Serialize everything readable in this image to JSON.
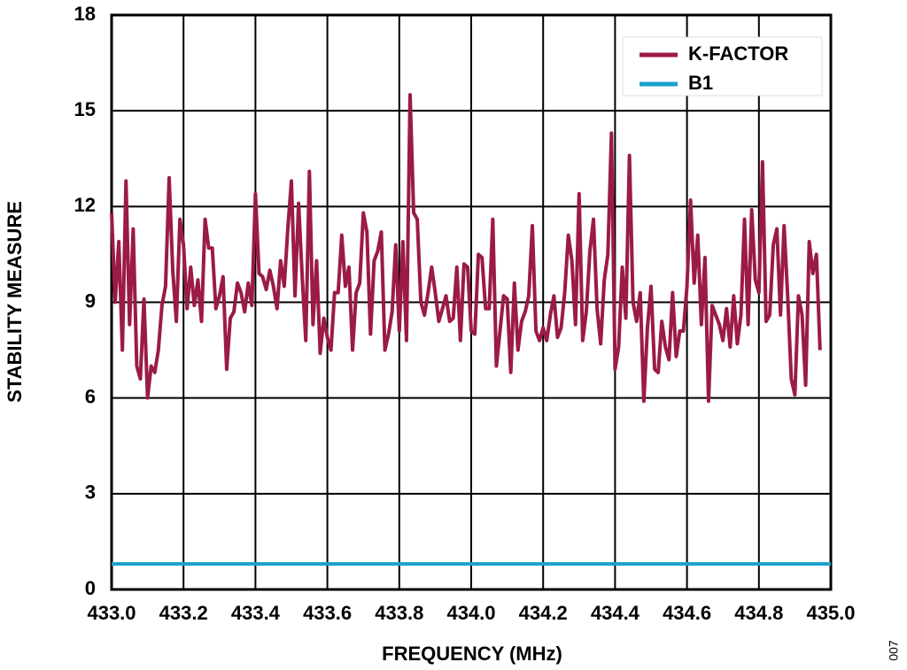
{
  "chart_data": {
    "type": "line",
    "ylabel": "STABILITY MEASURE",
    "xlabel": "FREQUENCY (MHz)",
    "figure_id": "007",
    "xlim": [
      433,
      435
    ],
    "ylim": [
      0,
      18
    ],
    "xticks": [
      {
        "value": 433,
        "label": "433.0"
      },
      433.2,
      433.4,
      433.6,
      433.8,
      {
        "value": 434,
        "label": "434.0"
      },
      434.2,
      434.4,
      434.6,
      434.8,
      {
        "value": 435,
        "label": "435.0"
      }
    ],
    "yticks": [
      0,
      3,
      6,
      9,
      12,
      15,
      18
    ],
    "grid": true,
    "legend": "upper right",
    "series": [
      {
        "name": "K-FACTOR",
        "color": "#9b1b45",
        "x": [
          433.0,
          433.01,
          433.02,
          433.03,
          433.04,
          433.05,
          433.06,
          433.07,
          433.08,
          433.09,
          433.1,
          433.11,
          433.12,
          433.13,
          433.14,
          433.15,
          433.16,
          433.17,
          433.18,
          433.19,
          433.2,
          433.21,
          433.22,
          433.23,
          433.24,
          433.25,
          433.26,
          433.27,
          433.28,
          433.29,
          433.3,
          433.31,
          433.32,
          433.33,
          433.34,
          433.35,
          433.36,
          433.37,
          433.38,
          433.39,
          433.4,
          433.41,
          433.42,
          433.43,
          433.44,
          433.45,
          433.46,
          433.47,
          433.48,
          433.49,
          433.5,
          433.51,
          433.52,
          433.53,
          433.54,
          433.55,
          433.56,
          433.57,
          433.58,
          433.59,
          433.6,
          433.61,
          433.62,
          433.63,
          433.64,
          433.65,
          433.66,
          433.67,
          433.68,
          433.69,
          433.7,
          433.71,
          433.72,
          433.73,
          433.74,
          433.75,
          433.76,
          433.77,
          433.78,
          433.79,
          433.8,
          433.81,
          433.82,
          433.83,
          433.84,
          433.85,
          433.86,
          433.87,
          433.88,
          433.89,
          433.9,
          433.91,
          433.92,
          433.93,
          433.94,
          433.95,
          433.96,
          433.97,
          433.98,
          433.99,
          434.0,
          434.01,
          434.02,
          434.03,
          434.04,
          434.05,
          434.06,
          434.07,
          434.08,
          434.09,
          434.1,
          434.11,
          434.12,
          434.13,
          434.14,
          434.15,
          434.16,
          434.17,
          434.18,
          434.19,
          434.2,
          434.21,
          434.22,
          434.23,
          434.24,
          434.25,
          434.26,
          434.27,
          434.28,
          434.29,
          434.3,
          434.31,
          434.32,
          434.33,
          434.34,
          434.35,
          434.36,
          434.37,
          434.38,
          434.39,
          434.4,
          434.41,
          434.42,
          434.43,
          434.44,
          434.45,
          434.46,
          434.47,
          434.48,
          434.49,
          434.5,
          434.51,
          434.52,
          434.53,
          434.54,
          434.55,
          434.56,
          434.57,
          434.58,
          434.59,
          434.6,
          434.61,
          434.62,
          434.63,
          434.64,
          434.65,
          434.66,
          434.67,
          434.68,
          434.69,
          434.7,
          434.71,
          434.72,
          434.73,
          434.74,
          434.75,
          434.76,
          434.77,
          434.78,
          434.79,
          434.8,
          434.81,
          434.82,
          434.83,
          434.84,
          434.85,
          434.86,
          434.87,
          434.88,
          434.89,
          434.9,
          434.91,
          434.92,
          434.93,
          434.94,
          434.95,
          434.96,
          434.97
        ],
        "values": [
          11.8,
          9.0,
          10.9,
          7.5,
          12.8,
          8.3,
          11.3,
          7.0,
          6.6,
          9.1,
          6.0,
          7.0,
          6.8,
          7.5,
          8.9,
          9.5,
          12.9,
          10.0,
          8.4,
          11.6,
          10.8,
          8.8,
          10.1,
          8.9,
          9.7,
          8.4,
          11.6,
          10.7,
          10.7,
          8.8,
          9.2,
          9.8,
          6.9,
          8.5,
          8.7,
          9.6,
          9.3,
          8.7,
          9.6,
          8.9,
          12.4,
          9.9,
          9.8,
          9.4,
          10.0,
          9.5,
          8.8,
          10.3,
          9.5,
          11.3,
          12.8,
          9.2,
          12.1,
          9.8,
          7.8,
          13.1,
          8.3,
          10.3,
          7.4,
          8.5,
          7.9,
          7.5,
          9.3,
          9.3,
          11.1,
          9.5,
          10.1,
          7.5,
          9.3,
          9.6,
          11.8,
          11.2,
          8.0,
          10.3,
          10.6,
          11.2,
          7.5,
          8.0,
          8.7,
          10.8,
          8.1,
          10.9,
          7.8,
          15.5,
          11.8,
          11.6,
          9.0,
          8.6,
          9.3,
          10.1,
          9.3,
          8.4,
          8.8,
          9.2,
          8.4,
          8.5,
          10.1,
          7.8,
          10.2,
          10.1,
          8.1,
          8.0,
          10.5,
          10.4,
          8.8,
          8.8,
          11.6,
          7.0,
          8.1,
          9.2,
          9.1,
          6.8,
          9.6,
          7.5,
          8.4,
          8.7,
          9.2,
          11.4,
          8.1,
          7.8,
          8.2,
          7.8,
          8.6,
          9.2,
          7.9,
          8.2,
          9.3,
          11.1,
          10.3,
          8.3,
          12.4,
          7.8,
          8.7,
          10.6,
          11.6,
          8.8,
          7.7,
          9.7,
          10.5,
          14.3,
          6.9,
          7.6,
          10.1,
          8.5,
          13.6,
          9.0,
          8.4,
          9.3,
          5.9,
          8.2,
          9.5,
          6.9,
          6.8,
          8.4,
          7.6,
          7.2,
          9.3,
          7.3,
          8.1,
          8.1,
          9.5,
          12.2,
          9.6,
          11.1,
          8.3,
          10.4,
          5.9,
          8.9,
          8.6,
          8.3,
          7.8,
          8.8,
          7.6,
          9.2,
          7.7,
          8.6,
          11.6,
          8.3,
          11.9,
          9.7,
          9.3,
          13.4,
          8.4,
          8.6,
          10.8,
          11.3,
          8.6,
          11.4,
          9.2,
          6.6,
          6.1,
          9.2,
          8.6,
          6.4,
          10.9,
          9.9,
          10.5,
          7.5
        ]
      },
      {
        "name": "B1",
        "color": "#1aa1cc",
        "x": [
          433,
          435
        ],
        "values": [
          0.8,
          0.8
        ]
      }
    ]
  }
}
